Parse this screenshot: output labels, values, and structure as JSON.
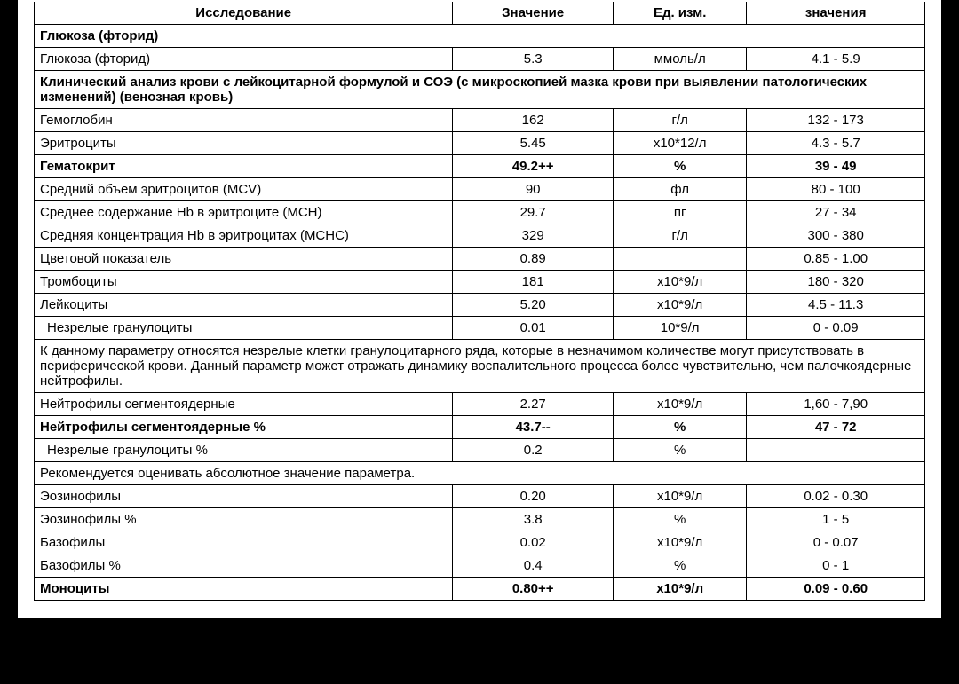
{
  "header": {
    "col1": "Исследование",
    "col2": "Значение",
    "col3": "Ед. изм.",
    "col4": "значения"
  },
  "sections": {
    "glucose": "Глюкоза (фторид)",
    "cbc": "Клинический анализ крови с лейкоцитарной формулой и СОЭ (с микроскопией мазка крови при выявлении патологических изменений) (венозная кровь)"
  },
  "rows": {
    "r1": {
      "name": "Глюкоза (фторид)",
      "val": "5.3",
      "unit": "ммоль/л",
      "norm": "4.1 - 5.9"
    },
    "r2": {
      "name": "Гемоглобин",
      "val": "162",
      "unit": "г/л",
      "norm": "132 - 173"
    },
    "r3": {
      "name": "Эритроциты",
      "val": "5.45",
      "unit": "x10*12/л",
      "norm": "4.3 - 5.7"
    },
    "r4": {
      "name": "Гематокрит",
      "val": "49.2++",
      "unit": "%",
      "norm": "39 - 49"
    },
    "r5": {
      "name": "Средний объем эритроцитов (MCV)",
      "val": "90",
      "unit": "фл",
      "norm": "80 - 100"
    },
    "r6": {
      "name": "Среднее содержание Hb в эритроците (MCH)",
      "val": "29.7",
      "unit": "пг",
      "norm": "27 - 34"
    },
    "r7": {
      "name": "Средняя концентрация Hb в эритроцитах (MCHC)",
      "val": "329",
      "unit": "г/л",
      "norm": "300 - 380"
    },
    "r8": {
      "name": "Цветовой показатель",
      "val": "0.89",
      "unit": "",
      "norm": "0.85 - 1.00"
    },
    "r9": {
      "name": "Тромбоциты",
      "val": "181",
      "unit": "x10*9/л",
      "norm": "180 - 320"
    },
    "r10": {
      "name": "Лейкоциты",
      "val": "5.20",
      "unit": "x10*9/л",
      "norm": "4.5 - 11.3"
    },
    "r11": {
      "name": " Незрелые гранулоциты",
      "val": "0.01",
      "unit": "10*9/л",
      "norm": "0 - 0.09"
    },
    "r12": {
      "name": "Нейтрофилы сегментоядерные",
      "val": "2.27",
      "unit": "x10*9/л",
      "norm": "1,60 - 7,90"
    },
    "r13": {
      "name": "Нейтрофилы сегментоядерные %",
      "val": "43.7--",
      "unit": "%",
      "norm": "47 - 72"
    },
    "r14": {
      "name": " Незрелые гранулоциты %",
      "val": "0.2",
      "unit": "%",
      "norm": ""
    },
    "r15": {
      "name": "Эозинофилы",
      "val": "0.20",
      "unit": "x10*9/л",
      "norm": "0.02 - 0.30"
    },
    "r16": {
      "name": "Эозинофилы %",
      "val": "3.8",
      "unit": "%",
      "norm": "1 - 5"
    },
    "r17": {
      "name": "Базофилы",
      "val": "0.02",
      "unit": "x10*9/л",
      "norm": "0 - 0.07"
    },
    "r18": {
      "name": "Базофилы %",
      "val": "0.4",
      "unit": "%",
      "norm": "0 - 1"
    },
    "r19": {
      "name": "Моноциты",
      "val": "0.80++",
      "unit": "x10*9/л",
      "norm": "0.09 - 0.60"
    }
  },
  "notes": {
    "n1": "К данному параметру относятся незрелые клетки гранулоцитарного ряда, которые  в незначимом количестве могут присутствовать в периферической крови. Данный параметр может отражать динамику воспалительного процесса более чувствительно, чем палочкоядерные нейтрофилы.",
    "n2": "Рекомендуется оценивать абсолютное значение параметра."
  },
  "style": {
    "font_family": "Arial",
    "font_size_pt": 11,
    "border_color": "#000000",
    "background": "#ffffff",
    "outer_background": "#000000"
  }
}
